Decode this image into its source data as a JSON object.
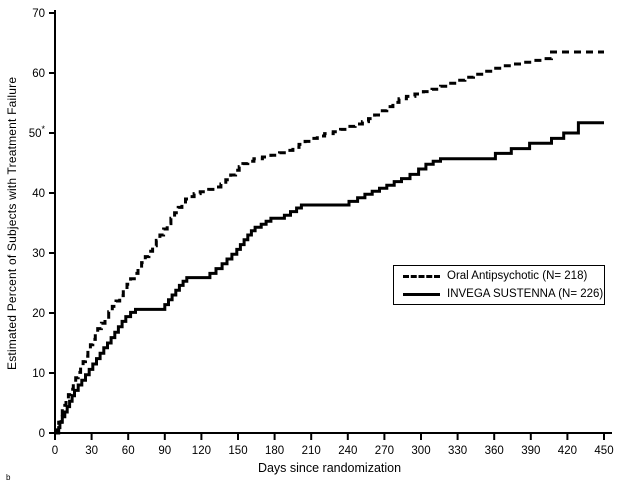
{
  "figure": {
    "footnote_mark": "b"
  },
  "chart_data": {
    "type": "line",
    "subtype": "kaplan-meier-step",
    "title": "",
    "xlabel": "Days since randomization",
    "ylabel": "Estimated Percent of Subjects with Treatment Failure",
    "xlim": [
      0,
      450
    ],
    "ylim": [
      0,
      70
    ],
    "x_ticks": [
      0,
      30,
      60,
      90,
      120,
      150,
      180,
      210,
      240,
      270,
      300,
      330,
      360,
      390,
      420,
      450
    ],
    "y_ticks": [
      0,
      10,
      20,
      30,
      40,
      50,
      60,
      70
    ],
    "y_tick_annotation": {
      "value": 50,
      "mark": "*"
    },
    "grid": false,
    "line_color": "#000000",
    "legend": {
      "position": "right-center",
      "border": true
    },
    "series": [
      {
        "name": "Oral Antipsychotic  (N= 218)",
        "style": "dashed",
        "color": "#000000",
        "step": true,
        "points": [
          [
            0,
            0
          ],
          [
            2,
            0.9
          ],
          [
            3,
            1.8
          ],
          [
            5,
            2.8
          ],
          [
            6,
            3.7
          ],
          [
            8,
            4.6
          ],
          [
            9,
            5.5
          ],
          [
            11,
            6.4
          ],
          [
            13,
            7.3
          ],
          [
            15,
            8.3
          ],
          [
            17,
            9.2
          ],
          [
            19,
            10.1
          ],
          [
            21,
            11.0
          ],
          [
            23,
            11.9
          ],
          [
            25,
            12.8
          ],
          [
            27,
            13.8
          ],
          [
            29,
            14.7
          ],
          [
            31,
            15.6
          ],
          [
            33,
            16.5
          ],
          [
            35,
            17.4
          ],
          [
            38,
            18.3
          ],
          [
            41,
            19.3
          ],
          [
            44,
            20.2
          ],
          [
            47,
            21.1
          ],
          [
            50,
            22.0
          ],
          [
            53,
            22.9
          ],
          [
            56,
            23.8
          ],
          [
            59,
            24.8
          ],
          [
            62,
            25.7
          ],
          [
            65,
            26.6
          ],
          [
            68,
            27.5
          ],
          [
            71,
            28.4
          ],
          [
            74,
            29.4
          ],
          [
            77,
            30.3
          ],
          [
            80,
            31.2
          ],
          [
            83,
            32.1
          ],
          [
            86,
            33.0
          ],
          [
            89,
            34.0
          ],
          [
            92,
            34.9
          ],
          [
            95,
            35.8
          ],
          [
            98,
            36.7
          ],
          [
            101,
            37.6
          ],
          [
            104,
            38.5
          ],
          [
            107,
            39.0
          ],
          [
            110,
            39.4
          ],
          [
            114,
            39.9
          ],
          [
            119,
            40.2
          ],
          [
            126,
            40.6
          ],
          [
            132,
            41.0
          ],
          [
            136,
            41.5
          ],
          [
            140,
            42.2
          ],
          [
            144,
            43.0
          ],
          [
            148,
            43.8
          ],
          [
            151,
            44.4
          ],
          [
            154,
            44.9
          ],
          [
            158,
            45.3
          ],
          [
            163,
            45.7
          ],
          [
            170,
            46.0
          ],
          [
            177,
            46.3
          ],
          [
            184,
            46.7
          ],
          [
            190,
            47.1
          ],
          [
            195,
            47.6
          ],
          [
            200,
            48.1
          ],
          [
            205,
            48.6
          ],
          [
            210,
            49.1
          ],
          [
            215,
            49.5
          ],
          [
            221,
            49.9
          ],
          [
            228,
            50.2
          ],
          [
            234,
            50.6
          ],
          [
            240,
            51.1
          ],
          [
            246,
            51.5
          ],
          [
            252,
            51.9
          ],
          [
            257,
            52.4
          ],
          [
            262,
            53.0
          ],
          [
            267,
            53.7
          ],
          [
            272,
            54.4
          ],
          [
            277,
            55.1
          ],
          [
            282,
            55.7
          ],
          [
            288,
            56.1
          ],
          [
            295,
            56.5
          ],
          [
            302,
            56.9
          ],
          [
            309,
            57.3
          ],
          [
            316,
            57.8
          ],
          [
            322,
            58.3
          ],
          [
            329,
            58.8
          ],
          [
            336,
            59.3
          ],
          [
            343,
            59.8
          ],
          [
            351,
            60.3
          ],
          [
            359,
            60.8
          ],
          [
            367,
            61.2
          ],
          [
            375,
            61.5
          ],
          [
            383,
            61.8
          ],
          [
            391,
            62.1
          ],
          [
            399,
            62.4
          ],
          [
            407,
            63.5
          ],
          [
            450,
            63.5
          ]
        ]
      },
      {
        "name": "INVEGA SUSTENNA  (N= 226)",
        "style": "solid",
        "color": "#000000",
        "step": true,
        "points": [
          [
            0,
            0
          ],
          [
            3,
            0.9
          ],
          [
            4,
            1.8
          ],
          [
            6,
            2.7
          ],
          [
            8,
            3.5
          ],
          [
            10,
            4.4
          ],
          [
            12,
            5.3
          ],
          [
            14,
            6.2
          ],
          [
            16,
            7.1
          ],
          [
            19,
            8.0
          ],
          [
            22,
            8.8
          ],
          [
            25,
            9.7
          ],
          [
            28,
            10.6
          ],
          [
            31,
            11.5
          ],
          [
            34,
            12.4
          ],
          [
            37,
            13.3
          ],
          [
            40,
            14.2
          ],
          [
            43,
            15.0
          ],
          [
            46,
            15.9
          ],
          [
            49,
            16.8
          ],
          [
            52,
            17.7
          ],
          [
            55,
            18.6
          ],
          [
            58,
            19.4
          ],
          [
            62,
            20.1
          ],
          [
            66,
            20.6
          ],
          [
            90,
            21.4
          ],
          [
            93,
            22.2
          ],
          [
            96,
            23.0
          ],
          [
            99,
            23.8
          ],
          [
            102,
            24.6
          ],
          [
            105,
            25.3
          ],
          [
            108,
            25.9
          ],
          [
            127,
            26.6
          ],
          [
            132,
            27.4
          ],
          [
            137,
            28.2
          ],
          [
            141,
            29.0
          ],
          [
            145,
            29.8
          ],
          [
            149,
            30.6
          ],
          [
            152,
            31.4
          ],
          [
            155,
            32.2
          ],
          [
            158,
            33.0
          ],
          [
            161,
            33.7
          ],
          [
            164,
            34.3
          ],
          [
            169,
            34.8
          ],
          [
            173,
            35.3
          ],
          [
            177,
            35.8
          ],
          [
            188,
            36.3
          ],
          [
            193,
            36.9
          ],
          [
            198,
            37.5
          ],
          [
            202,
            38.0
          ],
          [
            241,
            38.6
          ],
          [
            248,
            39.2
          ],
          [
            254,
            39.8
          ],
          [
            260,
            40.3
          ],
          [
            266,
            40.8
          ],
          [
            272,
            41.3
          ],
          [
            278,
            41.9
          ],
          [
            284,
            42.4
          ],
          [
            291,
            43.1
          ],
          [
            298,
            44.0
          ],
          [
            304,
            44.8
          ],
          [
            310,
            45.3
          ],
          [
            316,
            45.7
          ],
          [
            361,
            46.6
          ],
          [
            374,
            47.4
          ],
          [
            389,
            48.3
          ],
          [
            407,
            49.1
          ],
          [
            417,
            50.0
          ],
          [
            429,
            51.7
          ],
          [
            450,
            51.7
          ]
        ]
      }
    ]
  }
}
